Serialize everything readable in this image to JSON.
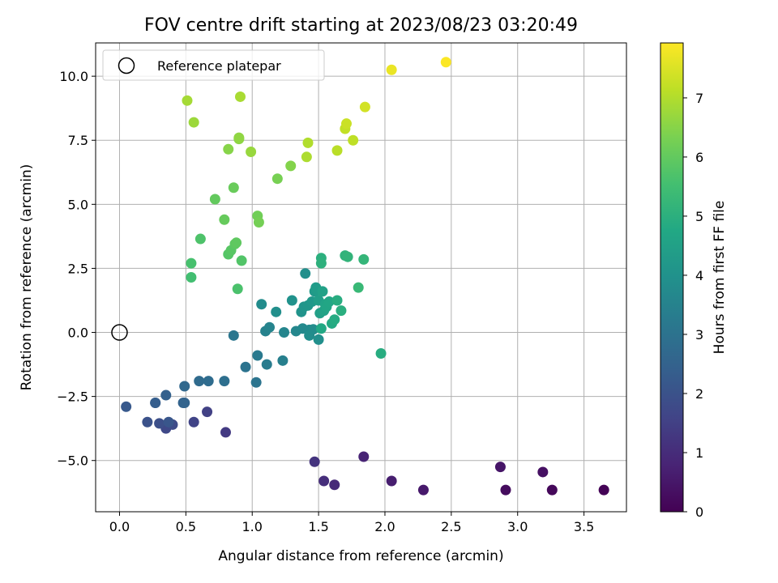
{
  "chart_data": {
    "type": "scatter",
    "title": "FOV centre drift starting at 2023/08/23 03:20:49",
    "xlabel": "Angular distance from reference (arcmin)",
    "ylabel": "Rotation from reference (arcmin)",
    "xlim": [
      -0.18,
      3.82
    ],
    "ylim": [
      -7.0,
      11.3
    ],
    "xticks": [
      0.0,
      0.5,
      1.0,
      1.5,
      2.0,
      2.5,
      3.0,
      3.5
    ],
    "xtick_labels": [
      "0.0",
      "0.5",
      "1.0",
      "1.5",
      "2.0",
      "2.5",
      "3.0",
      "3.5"
    ],
    "yticks": [
      -5.0,
      -2.5,
      0.0,
      2.5,
      5.0,
      7.5,
      10.0
    ],
    "ytick_labels": [
      "−5.0",
      "−2.5",
      "0.0",
      "2.5",
      "5.0",
      "7.5",
      "10.0"
    ],
    "grid": true,
    "legend": {
      "placement": "upper-left",
      "entries": [
        "Reference platepar"
      ]
    },
    "colorbar": {
      "label": "Hours from first FF file",
      "colormap": "viridis",
      "range": [
        0,
        7.93
      ],
      "ticks": [
        0,
        1,
        2,
        3,
        4,
        5,
        6,
        7
      ],
      "tick_labels": [
        "0",
        "1",
        "2",
        "3",
        "4",
        "5",
        "6",
        "7"
      ]
    },
    "reference_point": {
      "x": 0.0,
      "y": 0.0
    },
    "points": [
      {
        "x": 3.65,
        "y": -6.15,
        "c": 0.05
      },
      {
        "x": 3.26,
        "y": -6.15,
        "c": 0.15
      },
      {
        "x": 2.91,
        "y": -6.15,
        "c": 0.25
      },
      {
        "x": 3.19,
        "y": -5.45,
        "c": 0.35
      },
      {
        "x": 2.87,
        "y": -5.25,
        "c": 0.45
      },
      {
        "x": 2.29,
        "y": -6.15,
        "c": 0.55
      },
      {
        "x": 2.05,
        "y": -5.8,
        "c": 0.65
      },
      {
        "x": 1.84,
        "y": -4.85,
        "c": 0.8
      },
      {
        "x": 1.62,
        "y": -5.95,
        "c": 0.95
      },
      {
        "x": 1.54,
        "y": -5.8,
        "c": 1.05
      },
      {
        "x": 1.47,
        "y": -5.05,
        "c": 1.2
      },
      {
        "x": 0.8,
        "y": -3.9,
        "c": 1.35
      },
      {
        "x": 0.66,
        "y": -3.1,
        "c": 1.5
      },
      {
        "x": 0.56,
        "y": -3.5,
        "c": 1.6
      },
      {
        "x": 0.35,
        "y": -3.75,
        "c": 1.7
      },
      {
        "x": 0.4,
        "y": -3.6,
        "c": 1.8
      },
      {
        "x": 0.3,
        "y": -3.55,
        "c": 1.9
      },
      {
        "x": 0.21,
        "y": -3.5,
        "c": 2.0
      },
      {
        "x": 0.37,
        "y": -3.5,
        "c": 2.1
      },
      {
        "x": 0.05,
        "y": -2.9,
        "c": 2.2
      },
      {
        "x": 0.27,
        "y": -2.75,
        "c": 2.3
      },
      {
        "x": 0.27,
        "y": -2.75,
        "c": 2.35
      },
      {
        "x": 0.35,
        "y": -2.45,
        "c": 2.45
      },
      {
        "x": 0.48,
        "y": -2.75,
        "c": 2.5
      },
      {
        "x": 0.49,
        "y": -2.75,
        "c": 2.55
      },
      {
        "x": 0.49,
        "y": -2.1,
        "c": 2.65
      },
      {
        "x": 0.6,
        "y": -1.9,
        "c": 2.75
      },
      {
        "x": 0.67,
        "y": -1.9,
        "c": 2.8
      },
      {
        "x": 0.79,
        "y": -1.9,
        "c": 2.9
      },
      {
        "x": 0.95,
        "y": -1.35,
        "c": 3.0
      },
      {
        "x": 1.03,
        "y": -1.95,
        "c": 3.05
      },
      {
        "x": 0.86,
        "y": -0.12,
        "c": 3.1
      },
      {
        "x": 1.04,
        "y": -0.9,
        "c": 3.2
      },
      {
        "x": 1.11,
        "y": -1.25,
        "c": 3.3
      },
      {
        "x": 1.23,
        "y": -1.1,
        "c": 3.4
      },
      {
        "x": 1.1,
        "y": 0.05,
        "c": 3.5
      },
      {
        "x": 1.13,
        "y": 0.2,
        "c": 3.55
      },
      {
        "x": 1.24,
        "y": 0.0,
        "c": 3.6
      },
      {
        "x": 1.33,
        "y": 0.05,
        "c": 3.65
      },
      {
        "x": 1.38,
        "y": 0.15,
        "c": 3.7
      },
      {
        "x": 1.43,
        "y": 0.1,
        "c": 3.75
      },
      {
        "x": 1.46,
        "y": 0.12,
        "c": 3.8
      },
      {
        "x": 1.43,
        "y": -0.12,
        "c": 3.85
      },
      {
        "x": 1.5,
        "y": -0.28,
        "c": 3.9
      },
      {
        "x": 1.07,
        "y": 1.1,
        "c": 3.8
      },
      {
        "x": 1.18,
        "y": 0.8,
        "c": 3.9
      },
      {
        "x": 1.3,
        "y": 1.25,
        "c": 4.0
      },
      {
        "x": 1.4,
        "y": 2.3,
        "c": 3.9
      },
      {
        "x": 1.37,
        "y": 0.8,
        "c": 4.05
      },
      {
        "x": 1.39,
        "y": 1.0,
        "c": 4.1
      },
      {
        "x": 1.42,
        "y": 1.05,
        "c": 4.15
      },
      {
        "x": 1.45,
        "y": 1.2,
        "c": 4.2
      },
      {
        "x": 1.47,
        "y": 1.6,
        "c": 4.25
      },
      {
        "x": 1.48,
        "y": 1.75,
        "c": 4.3
      },
      {
        "x": 1.49,
        "y": 1.65,
        "c": 4.35
      },
      {
        "x": 1.5,
        "y": 1.25,
        "c": 4.4
      },
      {
        "x": 1.51,
        "y": 0.75,
        "c": 4.45
      },
      {
        "x": 1.53,
        "y": 1.6,
        "c": 4.5
      },
      {
        "x": 1.54,
        "y": 0.85,
        "c": 4.55
      },
      {
        "x": 1.55,
        "y": 1.1,
        "c": 4.6
      },
      {
        "x": 1.56,
        "y": 1.0,
        "c": 4.65
      },
      {
        "x": 1.58,
        "y": 1.2,
        "c": 4.7
      },
      {
        "x": 1.52,
        "y": 0.15,
        "c": 4.75
      },
      {
        "x": 1.6,
        "y": 0.35,
        "c": 4.8
      },
      {
        "x": 1.62,
        "y": 0.5,
        "c": 4.85
      },
      {
        "x": 1.64,
        "y": 1.25,
        "c": 4.9
      },
      {
        "x": 1.67,
        "y": 0.85,
        "c": 4.95
      },
      {
        "x": 1.97,
        "y": -0.82,
        "c": 4.9
      },
      {
        "x": 1.52,
        "y": 2.9,
        "c": 5.0
      },
      {
        "x": 1.52,
        "y": 2.7,
        "c": 5.05
      },
      {
        "x": 1.7,
        "y": 3.0,
        "c": 5.1
      },
      {
        "x": 1.72,
        "y": 2.95,
        "c": 5.15
      },
      {
        "x": 1.84,
        "y": 2.85,
        "c": 5.2
      },
      {
        "x": 1.8,
        "y": 1.75,
        "c": 5.3
      },
      {
        "x": 0.54,
        "y": 2.15,
        "c": 5.5
      },
      {
        "x": 0.54,
        "y": 2.7,
        "c": 5.6
      },
      {
        "x": 0.61,
        "y": 3.65,
        "c": 5.7
      },
      {
        "x": 0.89,
        "y": 1.7,
        "c": 5.65
      },
      {
        "x": 0.92,
        "y": 2.8,
        "c": 5.75
      },
      {
        "x": 0.82,
        "y": 3.05,
        "c": 5.8
      },
      {
        "x": 0.84,
        "y": 3.2,
        "c": 5.85
      },
      {
        "x": 0.87,
        "y": 3.45,
        "c": 5.9
      },
      {
        "x": 0.88,
        "y": 3.5,
        "c": 5.95
      },
      {
        "x": 0.72,
        "y": 5.2,
        "c": 6.0
      },
      {
        "x": 0.79,
        "y": 4.4,
        "c": 6.05
      },
      {
        "x": 0.86,
        "y": 5.65,
        "c": 6.1
      },
      {
        "x": 1.04,
        "y": 4.55,
        "c": 6.2
      },
      {
        "x": 1.05,
        "y": 4.3,
        "c": 6.25
      },
      {
        "x": 1.19,
        "y": 6.0,
        "c": 6.3
      },
      {
        "x": 1.29,
        "y": 6.5,
        "c": 6.45
      },
      {
        "x": 0.82,
        "y": 7.15,
        "c": 6.5
      },
      {
        "x": 0.9,
        "y": 7.55,
        "c": 6.55
      },
      {
        "x": 0.9,
        "y": 7.6,
        "c": 6.6
      },
      {
        "x": 0.99,
        "y": 7.05,
        "c": 6.7
      },
      {
        "x": 0.56,
        "y": 8.2,
        "c": 6.75
      },
      {
        "x": 0.51,
        "y": 9.05,
        "c": 6.85
      },
      {
        "x": 0.91,
        "y": 9.2,
        "c": 6.9
      },
      {
        "x": 1.41,
        "y": 6.85,
        "c": 6.95
      },
      {
        "x": 1.42,
        "y": 7.4,
        "c": 7.0
      },
      {
        "x": 1.64,
        "y": 7.1,
        "c": 7.1
      },
      {
        "x": 1.76,
        "y": 7.5,
        "c": 7.15
      },
      {
        "x": 1.7,
        "y": 7.95,
        "c": 7.2
      },
      {
        "x": 1.71,
        "y": 8.15,
        "c": 7.3
      },
      {
        "x": 1.85,
        "y": 8.8,
        "c": 7.4
      },
      {
        "x": 2.05,
        "y": 10.25,
        "c": 7.7
      },
      {
        "x": 2.46,
        "y": 10.55,
        "c": 7.9
      }
    ]
  }
}
